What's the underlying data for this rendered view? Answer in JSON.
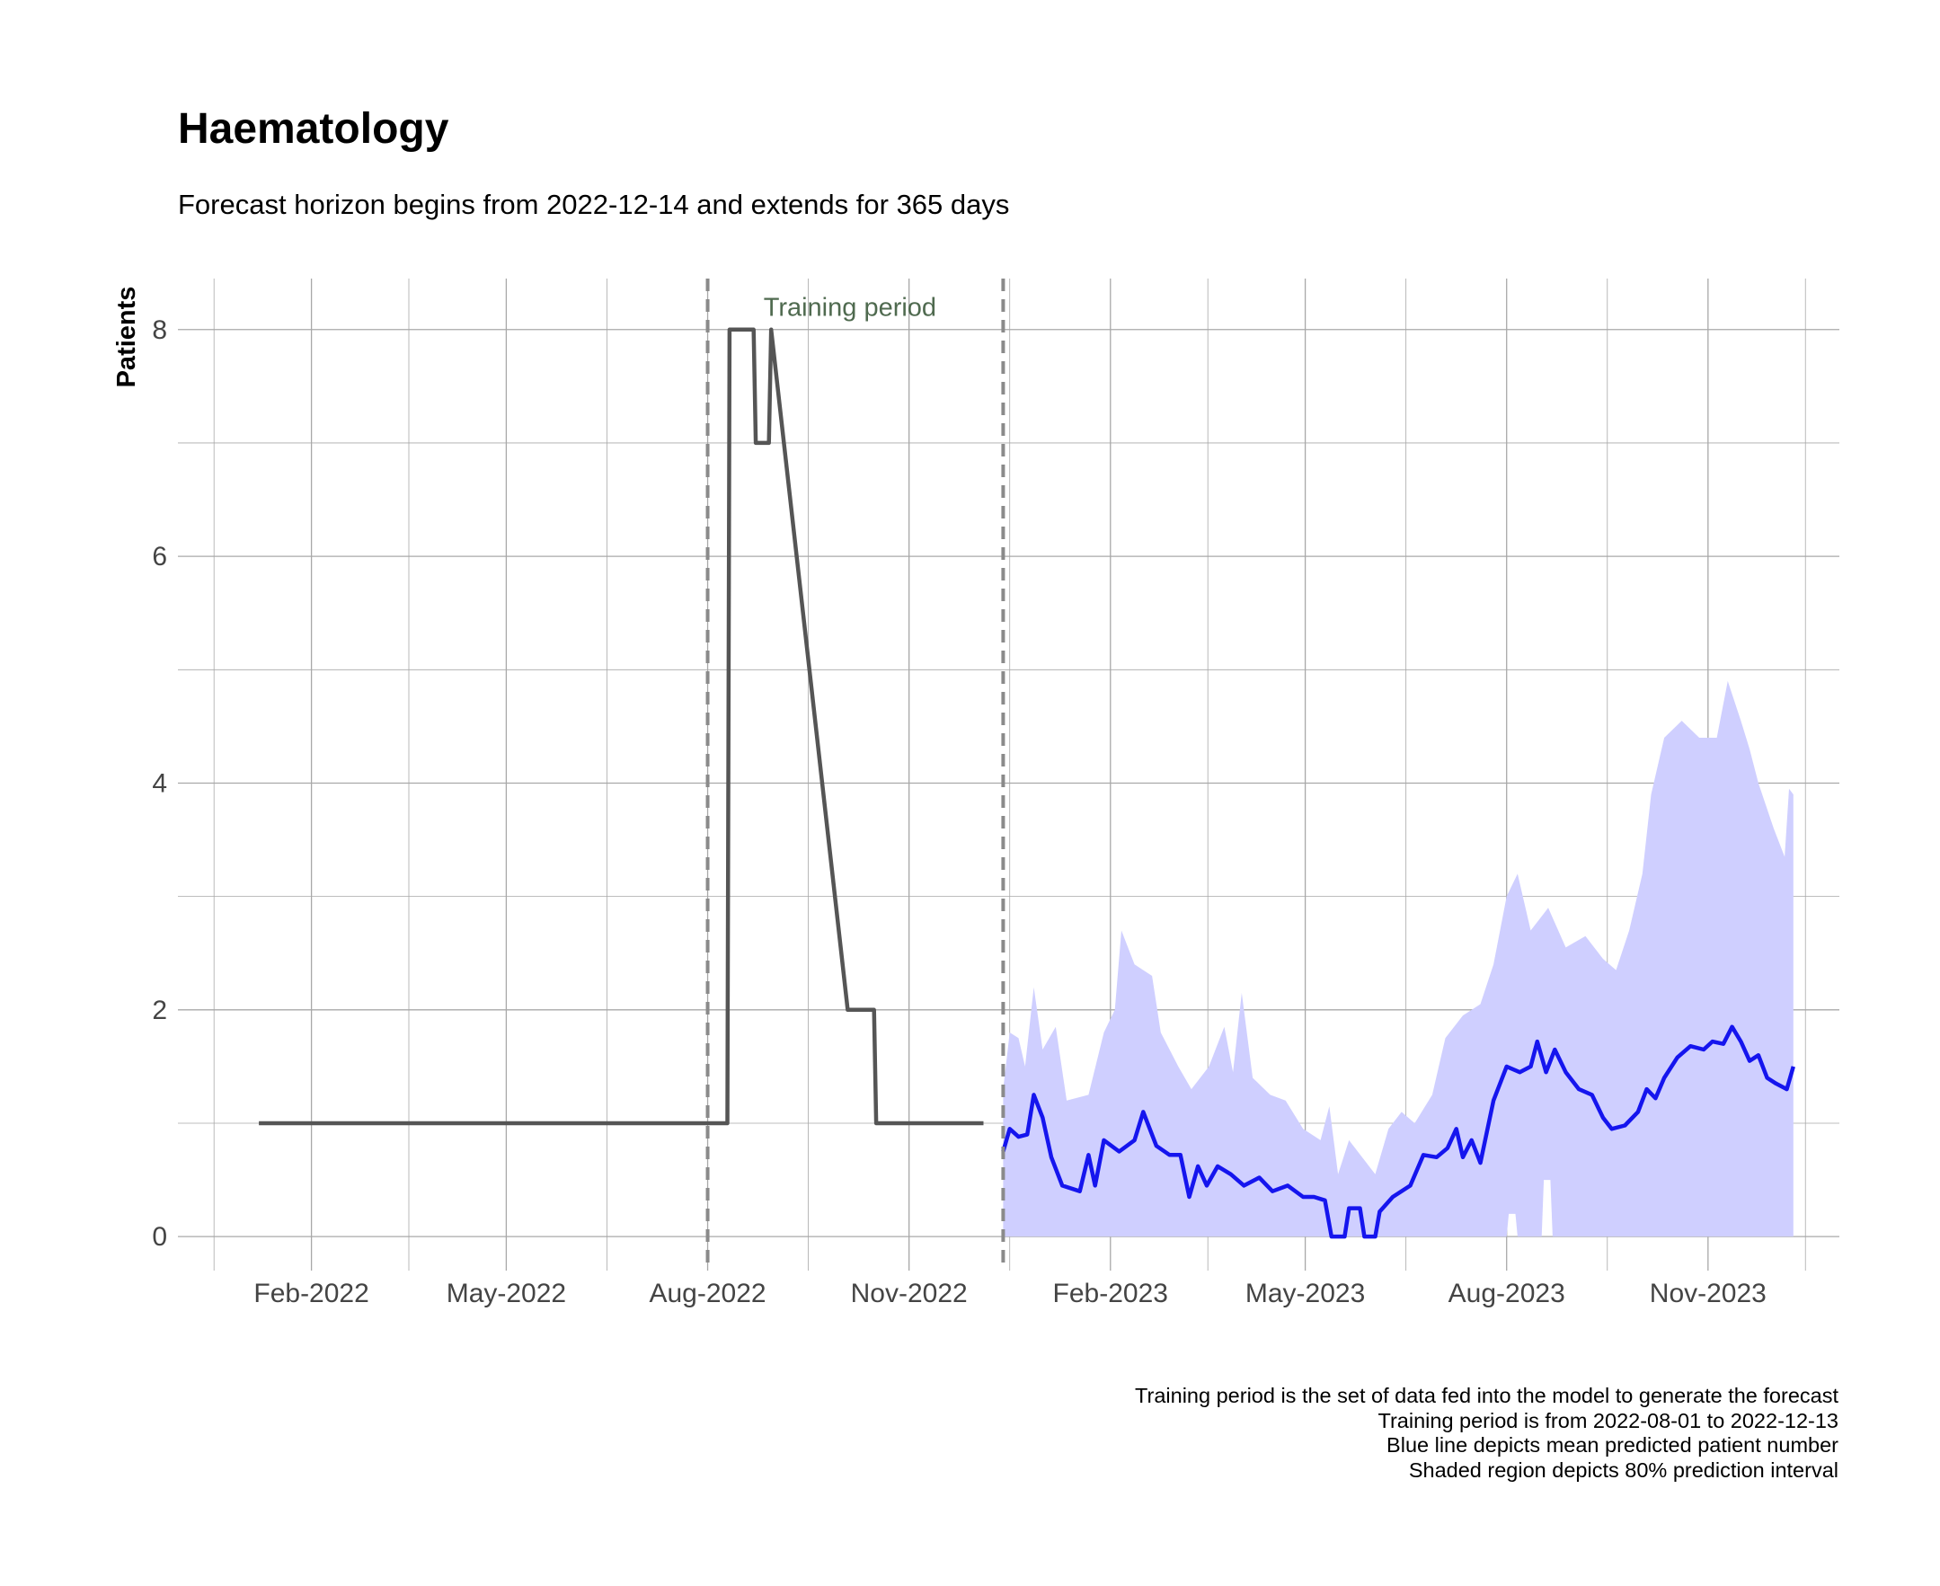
{
  "title": "Haematology",
  "subtitle": "Forecast horizon begins from 2022-12-14 and extends for 365 days",
  "caption": [
    "Training period is the set of data fed into the model to generate the forecast",
    "Training period is from 2022-08-01 to 2022-12-13",
    "Blue line depicts mean predicted patient number",
    "Shaded region depicts 80% prediction interval"
  ],
  "colors": {
    "history_line": "#555555",
    "forecast_line": "#1515ee",
    "interval_fill": "#cfcfff",
    "grid": "#a8a8a8",
    "vline": "#8a8a8a",
    "annotation": "#4f6a4f"
  },
  "chart_data": {
    "type": "line",
    "title": "Haematology",
    "xlabel": "",
    "ylabel": "Patients",
    "xlim": [
      "2021-12-02",
      "2023-12-31"
    ],
    "ylim": [
      -0.3,
      8.45
    ],
    "yticks": [
      0,
      2,
      4,
      6,
      8
    ],
    "xticks": [
      {
        "date": "2022-02-01",
        "label": "Feb-2022"
      },
      {
        "date": "2022-05-01",
        "label": "May-2022"
      },
      {
        "date": "2022-08-01",
        "label": "Aug-2022"
      },
      {
        "date": "2022-11-01",
        "label": "Nov-2022"
      },
      {
        "date": "2023-02-01",
        "label": "Feb-2023"
      },
      {
        "date": "2023-05-01",
        "label": "May-2023"
      },
      {
        "date": "2023-08-01",
        "label": "Aug-2023"
      },
      {
        "date": "2023-11-01",
        "label": "Nov-2023"
      }
    ],
    "vlines": [
      "2022-08-01",
      "2022-12-14"
    ],
    "annotation": {
      "text": "Training period",
      "date": "2022-10-05",
      "y": 8.2
    },
    "history": [
      [
        "2022-01-08",
        1
      ],
      [
        "2022-08-10",
        1
      ],
      [
        "2022-08-11",
        8
      ],
      [
        "2022-08-22",
        8
      ],
      [
        "2022-08-23",
        7
      ],
      [
        "2022-08-29",
        7
      ],
      [
        "2022-08-30",
        8
      ],
      [
        "2022-10-04",
        2
      ],
      [
        "2022-10-16",
        2
      ],
      [
        "2022-10-17",
        1
      ],
      [
        "2022-12-05",
        1
      ]
    ],
    "forecast_mean": [
      [
        "2022-12-14",
        0.75
      ],
      [
        "2022-12-17",
        0.95
      ],
      [
        "2022-12-21",
        0.88
      ],
      [
        "2022-12-25",
        0.9
      ],
      [
        "2022-12-28",
        1.25
      ],
      [
        "2023-01-01",
        1.05
      ],
      [
        "2023-01-05",
        0.7
      ],
      [
        "2023-01-10",
        0.45
      ],
      [
        "2023-01-18",
        0.4
      ],
      [
        "2023-01-22",
        0.72
      ],
      [
        "2023-01-25",
        0.45
      ],
      [
        "2023-01-29",
        0.85
      ],
      [
        "2023-02-05",
        0.75
      ],
      [
        "2023-02-12",
        0.85
      ],
      [
        "2023-02-16",
        1.1
      ],
      [
        "2023-02-22",
        0.8
      ],
      [
        "2023-02-28",
        0.72
      ],
      [
        "2023-03-05",
        0.72
      ],
      [
        "2023-03-09",
        0.35
      ],
      [
        "2023-03-13",
        0.62
      ],
      [
        "2023-03-17",
        0.45
      ],
      [
        "2023-03-22",
        0.62
      ],
      [
        "2023-03-28",
        0.55
      ],
      [
        "2023-04-03",
        0.45
      ],
      [
        "2023-04-10",
        0.52
      ],
      [
        "2023-04-16",
        0.4
      ],
      [
        "2023-04-23",
        0.45
      ],
      [
        "2023-04-30",
        0.35
      ],
      [
        "2023-05-05",
        0.35
      ],
      [
        "2023-05-10",
        0.32
      ],
      [
        "2023-05-13",
        0.0
      ],
      [
        "2023-05-19",
        0.0
      ],
      [
        "2023-05-21",
        0.25
      ],
      [
        "2023-05-26",
        0.25
      ],
      [
        "2023-05-28",
        0.0
      ],
      [
        "2023-06-02",
        0.0
      ],
      [
        "2023-06-04",
        0.22
      ],
      [
        "2023-06-10",
        0.35
      ],
      [
        "2023-06-18",
        0.45
      ],
      [
        "2023-06-24",
        0.72
      ],
      [
        "2023-06-30",
        0.7
      ],
      [
        "2023-07-05",
        0.78
      ],
      [
        "2023-07-09",
        0.95
      ],
      [
        "2023-07-12",
        0.7
      ],
      [
        "2023-07-16",
        0.85
      ],
      [
        "2023-07-20",
        0.65
      ],
      [
        "2023-07-26",
        1.2
      ],
      [
        "2023-08-01",
        1.5
      ],
      [
        "2023-08-07",
        1.45
      ],
      [
        "2023-08-12",
        1.5
      ],
      [
        "2023-08-15",
        1.72
      ],
      [
        "2023-08-19",
        1.45
      ],
      [
        "2023-08-23",
        1.65
      ],
      [
        "2023-08-28",
        1.45
      ],
      [
        "2023-09-03",
        1.3
      ],
      [
        "2023-09-09",
        1.25
      ],
      [
        "2023-09-14",
        1.05
      ],
      [
        "2023-09-18",
        0.95
      ],
      [
        "2023-09-24",
        0.98
      ],
      [
        "2023-09-30",
        1.1
      ],
      [
        "2023-10-04",
        1.3
      ],
      [
        "2023-10-08",
        1.22
      ],
      [
        "2023-10-12",
        1.4
      ],
      [
        "2023-10-18",
        1.58
      ],
      [
        "2023-10-24",
        1.68
      ],
      [
        "2023-10-30",
        1.65
      ],
      [
        "2023-11-03",
        1.72
      ],
      [
        "2023-11-08",
        1.7
      ],
      [
        "2023-11-12",
        1.85
      ],
      [
        "2023-11-16",
        1.72
      ],
      [
        "2023-11-20",
        1.55
      ],
      [
        "2023-11-24",
        1.6
      ],
      [
        "2023-11-28",
        1.4
      ],
      [
        "2023-12-02",
        1.35
      ],
      [
        "2023-12-07",
        1.3
      ],
      [
        "2023-12-10",
        1.5
      ]
    ],
    "forecast_upper": [
      [
        "2022-12-14",
        1.3
      ],
      [
        "2022-12-17",
        1.8
      ],
      [
        "2022-12-21",
        1.75
      ],
      [
        "2022-12-24",
        1.5
      ],
      [
        "2022-12-28",
        2.2
      ],
      [
        "2023-01-01",
        1.65
      ],
      [
        "2023-01-07",
        1.85
      ],
      [
        "2023-01-12",
        1.2
      ],
      [
        "2023-01-22",
        1.25
      ],
      [
        "2023-01-29",
        1.8
      ],
      [
        "2023-02-03",
        2.0
      ],
      [
        "2023-02-06",
        2.7
      ],
      [
        "2023-02-12",
        2.4
      ],
      [
        "2023-02-20",
        2.3
      ],
      [
        "2023-02-24",
        1.8
      ],
      [
        "2023-03-04",
        1.5
      ],
      [
        "2023-03-10",
        1.3
      ],
      [
        "2023-03-18",
        1.5
      ],
      [
        "2023-03-25",
        1.85
      ],
      [
        "2023-03-29",
        1.45
      ],
      [
        "2023-04-02",
        2.15
      ],
      [
        "2023-04-07",
        1.4
      ],
      [
        "2023-04-15",
        1.25
      ],
      [
        "2023-04-22",
        1.2
      ],
      [
        "2023-04-30",
        0.95
      ],
      [
        "2023-05-08",
        0.85
      ],
      [
        "2023-05-12",
        1.15
      ],
      [
        "2023-05-16",
        0.55
      ],
      [
        "2023-05-21",
        0.85
      ],
      [
        "2023-06-02",
        0.55
      ],
      [
        "2023-06-08",
        0.95
      ],
      [
        "2023-06-14",
        1.1
      ],
      [
        "2023-06-20",
        1.0
      ],
      [
        "2023-06-28",
        1.25
      ],
      [
        "2023-07-04",
        1.75
      ],
      [
        "2023-07-12",
        1.95
      ],
      [
        "2023-07-20",
        2.05
      ],
      [
        "2023-07-26",
        2.4
      ],
      [
        "2023-08-01",
        3.0
      ],
      [
        "2023-08-06",
        3.2
      ],
      [
        "2023-08-12",
        2.7
      ],
      [
        "2023-08-20",
        2.9
      ],
      [
        "2023-08-28",
        2.55
      ],
      [
        "2023-09-06",
        2.65
      ],
      [
        "2023-09-14",
        2.45
      ],
      [
        "2023-09-20",
        2.35
      ],
      [
        "2023-09-26",
        2.7
      ],
      [
        "2023-10-02",
        3.2
      ],
      [
        "2023-10-06",
        3.9
      ],
      [
        "2023-10-12",
        4.4
      ],
      [
        "2023-10-20",
        4.55
      ],
      [
        "2023-10-28",
        4.4
      ],
      [
        "2023-11-05",
        4.4
      ],
      [
        "2023-11-10",
        4.9
      ],
      [
        "2023-11-16",
        4.55
      ],
      [
        "2023-11-20",
        4.3
      ],
      [
        "2023-11-24",
        4.0
      ],
      [
        "2023-12-01",
        3.6
      ],
      [
        "2023-12-06",
        3.35
      ],
      [
        "2023-12-08",
        3.95
      ],
      [
        "2023-12-10",
        3.9
      ]
    ],
    "forecast_lower": [
      [
        "2022-12-14",
        0
      ],
      [
        "2023-08-01",
        0
      ],
      [
        "2023-08-02",
        0.2
      ],
      [
        "2023-08-05",
        0.2
      ],
      [
        "2023-08-06",
        0
      ],
      [
        "2023-08-17",
        0
      ],
      [
        "2023-08-18",
        0.5
      ],
      [
        "2023-08-21",
        0.5
      ],
      [
        "2023-08-22",
        0
      ],
      [
        "2023-12-10",
        0
      ]
    ]
  }
}
